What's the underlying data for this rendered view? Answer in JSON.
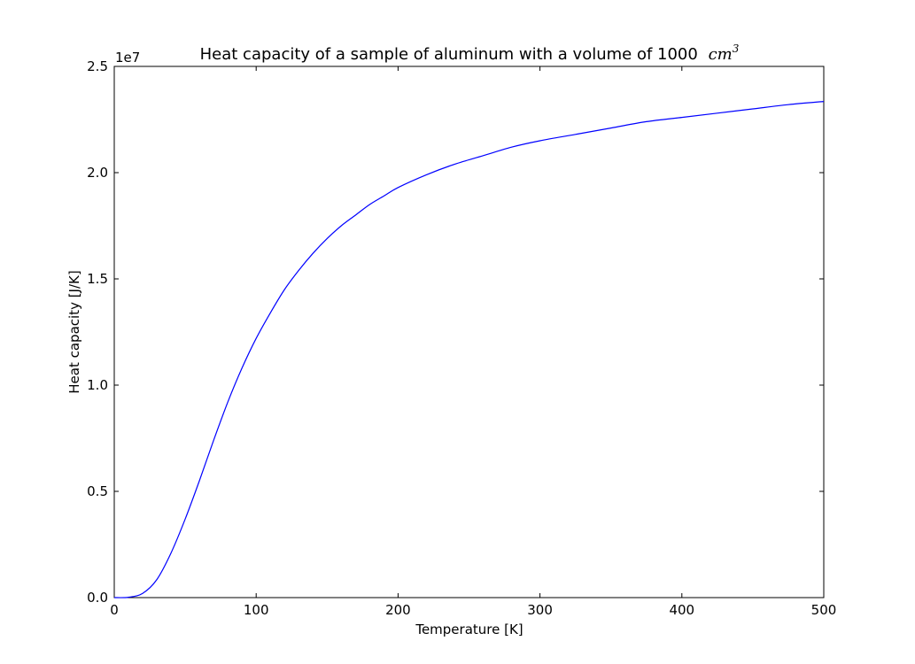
{
  "chart_data": {
    "type": "line",
    "title": "Heat capacity of a sample of aluminum with a volume of 1000",
    "title_math": "cm",
    "title_math_sup": "3",
    "xlabel": "Temperature [K]",
    "ylabel": "Heat capacity [J/K]",
    "y_offset_label": "1e7",
    "xlim": [
      0,
      500
    ],
    "ylim": [
      0,
      2.5
    ],
    "x_ticks": [
      0,
      100,
      200,
      300,
      400,
      500
    ],
    "x_tick_labels": [
      "0",
      "100",
      "200",
      "300",
      "400",
      "500"
    ],
    "y_ticks": [
      0.0,
      0.5,
      1.0,
      1.5,
      2.0,
      2.5
    ],
    "y_tick_labels": [
      "0.0",
      "0.5",
      "1.0",
      "1.5",
      "2.0",
      "2.5"
    ],
    "grid": false,
    "line_color": "#0000ff",
    "series": [
      {
        "x": [
          0,
          10,
          20,
          30,
          40,
          50,
          60,
          70,
          80,
          90,
          100,
          110,
          120,
          130,
          140,
          150,
          160,
          170,
          180,
          190,
          200,
          220,
          240,
          260,
          280,
          300,
          325,
          350,
          375,
          400,
          425,
          450,
          475,
          500
        ],
        "values": [
          0.0,
          0.0015,
          0.02,
          0.085,
          0.21,
          0.37,
          0.55,
          0.74,
          0.92,
          1.08,
          1.22,
          1.34,
          1.45,
          1.54,
          1.62,
          1.69,
          1.75,
          1.8,
          1.85,
          1.89,
          1.93,
          1.99,
          2.04,
          2.08,
          2.12,
          2.15,
          2.18,
          2.21,
          2.24,
          2.26,
          2.28,
          2.3,
          2.32,
          2.335
        ]
      }
    ]
  }
}
